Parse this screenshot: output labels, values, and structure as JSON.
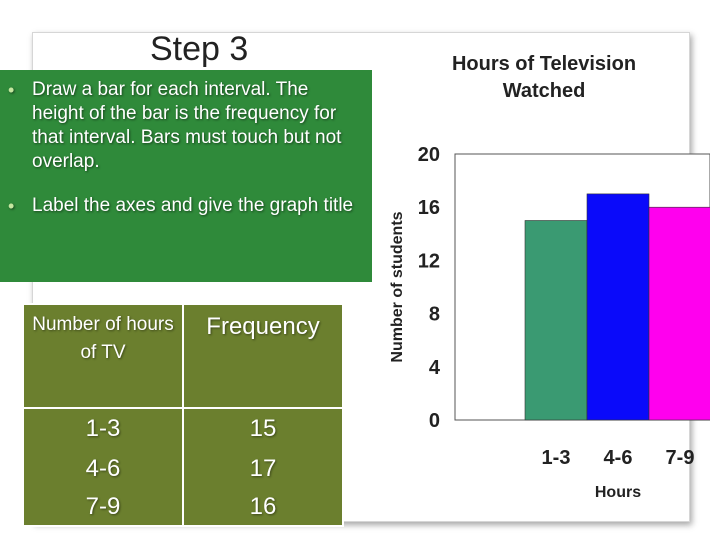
{
  "slide": {
    "title": "Step 3",
    "bullets": [
      "Draw a bar for each interval. The height of the bar is the frequency for that interval. Bars must touch but not overlap.",
      "Label the axes and give the graph title"
    ],
    "bullet_color": "#c5e7a0",
    "box_color": "#2f8a3a"
  },
  "table": {
    "headers": [
      "Number of hours of TV",
      "Frequency"
    ],
    "rows": [
      {
        "interval": "1-3",
        "frequency": "15"
      },
      {
        "interval": "4-6",
        "frequency": "17"
      },
      {
        "interval": "7-9",
        "frequency": "16"
      }
    ],
    "background": "#6b7f2e"
  },
  "chart_data": {
    "type": "bar",
    "title_lines": [
      "Hours of Television",
      "Watched"
    ],
    "xlabel": "Hours",
    "ylabel": "Number of students",
    "categories": [
      "1-3",
      "4-6",
      "7-9"
    ],
    "values": [
      15,
      17,
      16
    ],
    "colors": [
      "#3a9a72",
      "#0a0afa",
      "#ff00ee"
    ],
    "ylim": [
      0,
      20
    ],
    "yticks": [
      0,
      4,
      8,
      12,
      16,
      20
    ],
    "grid": false
  }
}
